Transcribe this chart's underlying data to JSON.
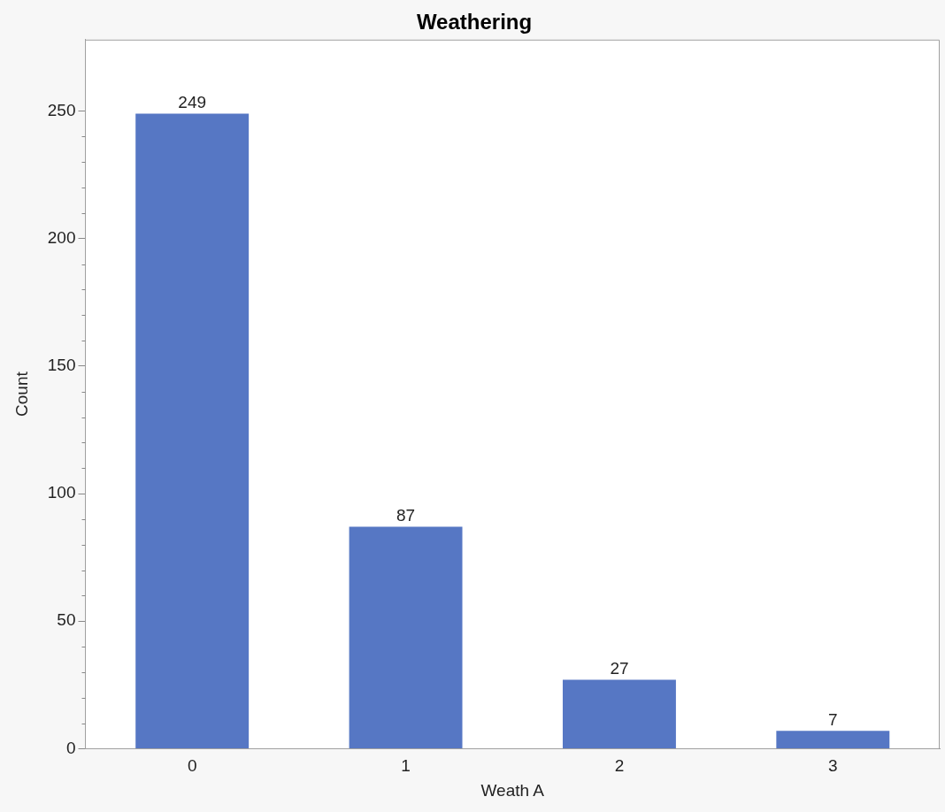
{
  "chart_data": {
    "type": "bar",
    "title": "Weathering",
    "xlabel": "Weath A",
    "ylabel": "Count",
    "categories": [
      "0",
      "1",
      "2",
      "3"
    ],
    "values": [
      249,
      87,
      27,
      7
    ],
    "color": "#5677c4",
    "ylim": [
      0,
      278
    ],
    "yticks": [
      0,
      50,
      100,
      150,
      200,
      250
    ],
    "grid": false,
    "legend": false,
    "data_labels": true
  }
}
